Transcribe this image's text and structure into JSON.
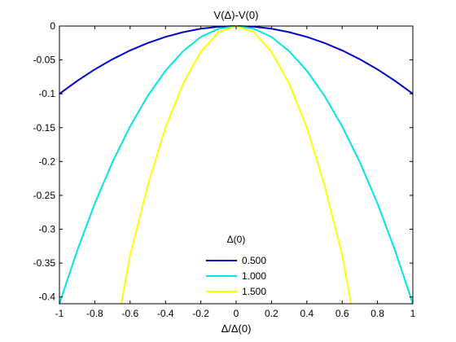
{
  "chart_data": {
    "type": "line",
    "title": "V(Δ)-V(0)",
    "xlabel": "Δ/Δ(0)",
    "ylabel": "",
    "xlim": [
      -1,
      1
    ],
    "ylim": [
      -0.41,
      0
    ],
    "xticks": [
      -1,
      -0.8,
      -0.6,
      -0.4,
      -0.2,
      0,
      0.2,
      0.4,
      0.6,
      0.8,
      1
    ],
    "xtick_labels": [
      "-1",
      "-0.8",
      "-0.6",
      "-0.4",
      "-0.2",
      "0",
      "0.2",
      "0.4",
      "0.6",
      "0.8",
      "1"
    ],
    "yticks": [
      0,
      -0.05,
      -0.1,
      -0.15,
      -0.2,
      -0.25,
      -0.3,
      -0.35,
      -0.4
    ],
    "ytick_labels": [
      "0",
      "-0.05",
      "-0.1",
      "-0.15",
      "-0.2",
      "-0.25",
      "-0.3",
      "-0.35",
      "-0.4"
    ],
    "grid": false,
    "legend": {
      "title": "Δ(0)",
      "placement": "bottom-center"
    },
    "x": [
      -1,
      -0.9,
      -0.8,
      -0.7,
      -0.6,
      -0.5,
      -0.4,
      -0.3,
      -0.2,
      -0.1,
      0,
      0.1,
      0.2,
      0.3,
      0.4,
      0.5,
      0.6,
      0.7,
      0.8,
      0.9,
      1
    ],
    "series": [
      {
        "name": "0.500",
        "color": "#0000cc",
        "y": [
          -0.1,
          -0.081,
          -0.064,
          -0.049,
          -0.036,
          -0.025,
          -0.016,
          -0.009,
          -0.004,
          -0.001,
          0,
          -0.001,
          -0.004,
          -0.009,
          -0.016,
          -0.025,
          -0.036,
          -0.049,
          -0.064,
          -0.081,
          -0.1
        ]
      },
      {
        "name": "1.000",
        "color": "#00e5e5",
        "y": [
          -0.41,
          -0.332,
          -0.262,
          -0.201,
          -0.148,
          -0.103,
          -0.066,
          -0.037,
          -0.016,
          -0.004,
          0,
          -0.004,
          -0.016,
          -0.037,
          -0.066,
          -0.103,
          -0.148,
          -0.201,
          -0.262,
          -0.332,
          -0.41
        ]
      },
      {
        "name": "1.500",
        "color": "#ffff00",
        "y": [
          null,
          null,
          null,
          null,
          -0.338,
          -0.235,
          -0.15,
          -0.085,
          -0.038,
          -0.009,
          0,
          -0.009,
          -0.038,
          -0.085,
          -0.15,
          -0.235,
          -0.338,
          null,
          null,
          null,
          null
        ],
        "x_end": 0.65,
        "y_end": -0.41
      }
    ]
  }
}
